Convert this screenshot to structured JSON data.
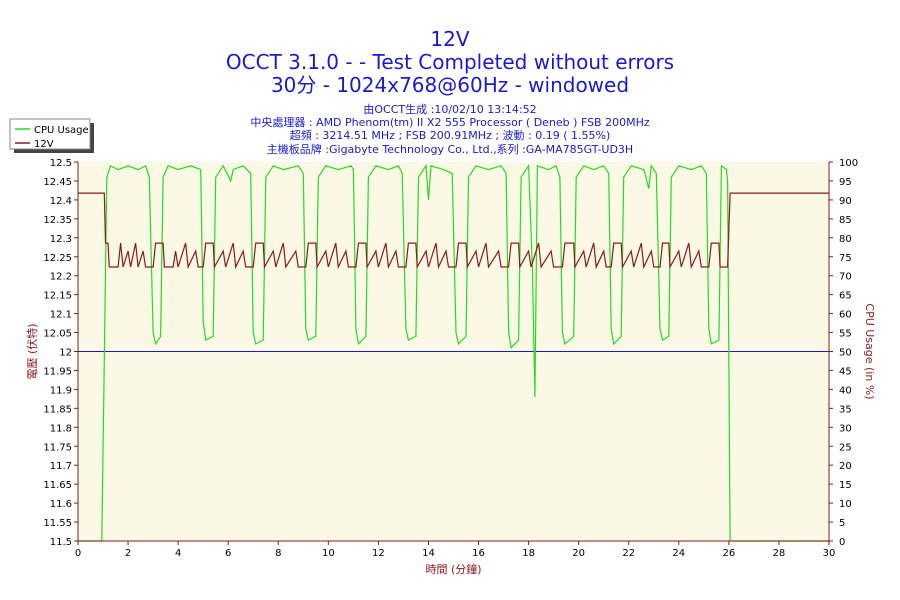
{
  "header": {
    "title": "12V",
    "subtitle": "OCCT 3.1.0 -  - Test Completed without errors",
    "config": "30分 - 1024x768@60Hz - windowed",
    "info_lines": [
      "由OCCT生成 :10/02/10 13:14:52",
      "中央處理器 : AMD Phenom(tm) II X2 555 Processor ( Deneb ) FSB 200MHz",
      "超頻 : 3214.51 MHz ; FSB 200.91MHz ; 波動 : 0.19 ( 1.55%)",
      "主機板品牌 :Gigabyte Technology Co., Ltd.,系列 :GA-MA785GT-UD3H"
    ]
  },
  "colors": {
    "plot_bg": "#fbf8e6",
    "cpu": "#22dd22",
    "voltage": "#8b1a1a",
    "threshold": "#1a1acc",
    "axis_left": "#8b1a1a",
    "axis_right": "#8b1a1a",
    "axis_bottom": "#8b1a1a"
  },
  "chart_data": {
    "type": "line",
    "xlabel": "時間 (分鐘)",
    "ylabel_left": "電壓 (伏特)",
    "ylabel_right": "CPU Usage (in %)",
    "xlim": [
      0,
      30
    ],
    "ylim_left": [
      11.5,
      12.5
    ],
    "ylim_right": [
      0,
      100
    ],
    "x_ticks": [
      0,
      2,
      4,
      6,
      8,
      10,
      12,
      14,
      16,
      18,
      20,
      22,
      24,
      26,
      28,
      30
    ],
    "y_left_ticks": [
      "11.5",
      "11.55",
      "11.6",
      "11.65",
      "11.7",
      "11.75",
      "11.8",
      "11.85",
      "11.9",
      "11.95",
      "12",
      "12.05",
      "12.1",
      "12.15",
      "12.2",
      "12.25",
      "12.3",
      "12.35",
      "12.4",
      "12.45",
      "12.5"
    ],
    "y_right_ticks": [
      0,
      5,
      10,
      15,
      20,
      25,
      30,
      35,
      40,
      45,
      50,
      55,
      60,
      65,
      70,
      75,
      80,
      85,
      90,
      95,
      100
    ],
    "legend_position": "top-left",
    "grid": false,
    "threshold_voltage": 12.0,
    "series": [
      {
        "name": "CPU Usage",
        "axis": "right",
        "points": [
          [
            0,
            0
          ],
          [
            0.95,
            0
          ],
          [
            1.05,
            48
          ],
          [
            1.15,
            96
          ],
          [
            1.3,
            99
          ],
          [
            1.6,
            98
          ],
          [
            2.0,
            99
          ],
          [
            2.4,
            98
          ],
          [
            2.7,
            99
          ],
          [
            2.85,
            96
          ],
          [
            3.0,
            55
          ],
          [
            3.1,
            52
          ],
          [
            3.3,
            54
          ],
          [
            3.4,
            96
          ],
          [
            3.6,
            99
          ],
          [
            4.0,
            98
          ],
          [
            4.5,
            99
          ],
          [
            4.9,
            98
          ],
          [
            5.0,
            58
          ],
          [
            5.1,
            53
          ],
          [
            5.4,
            54
          ],
          [
            5.5,
            96
          ],
          [
            5.8,
            99
          ],
          [
            6.1,
            95
          ],
          [
            6.2,
            98
          ],
          [
            6.6,
            99
          ],
          [
            6.9,
            97
          ],
          [
            7.0,
            55
          ],
          [
            7.1,
            52
          ],
          [
            7.4,
            53
          ],
          [
            7.5,
            96
          ],
          [
            7.8,
            99
          ],
          [
            8.2,
            98
          ],
          [
            8.8,
            99
          ],
          [
            9.0,
            97
          ],
          [
            9.1,
            56
          ],
          [
            9.2,
            53
          ],
          [
            9.5,
            54
          ],
          [
            9.6,
            96
          ],
          [
            9.9,
            99
          ],
          [
            10.4,
            98
          ],
          [
            10.9,
            99
          ],
          [
            11.0,
            98
          ],
          [
            11.1,
            56
          ],
          [
            11.2,
            52
          ],
          [
            11.5,
            54
          ],
          [
            11.6,
            96
          ],
          [
            11.9,
            99
          ],
          [
            12.4,
            98
          ],
          [
            12.8,
            99
          ],
          [
            12.95,
            97
          ],
          [
            13.1,
            56
          ],
          [
            13.2,
            53
          ],
          [
            13.5,
            54
          ],
          [
            13.6,
            96
          ],
          [
            13.9,
            99
          ],
          [
            14.0,
            90
          ],
          [
            14.1,
            99
          ],
          [
            14.6,
            98
          ],
          [
            14.95,
            97
          ],
          [
            15.1,
            55
          ],
          [
            15.2,
            52
          ],
          [
            15.5,
            54
          ],
          [
            15.6,
            96
          ],
          [
            15.9,
            99
          ],
          [
            16.4,
            98
          ],
          [
            16.9,
            99
          ],
          [
            17.1,
            97
          ],
          [
            17.2,
            55
          ],
          [
            17.3,
            51
          ],
          [
            17.6,
            53
          ],
          [
            17.7,
            96
          ],
          [
            18.0,
            99
          ],
          [
            18.15,
            72
          ],
          [
            18.25,
            38
          ],
          [
            18.35,
            99
          ],
          [
            18.8,
            98
          ],
          [
            19.1,
            99
          ],
          [
            19.25,
            96
          ],
          [
            19.35,
            55
          ],
          [
            19.45,
            52
          ],
          [
            19.8,
            54
          ],
          [
            19.9,
            96
          ],
          [
            20.2,
            99
          ],
          [
            20.6,
            98
          ],
          [
            21.0,
            99
          ],
          [
            21.2,
            97
          ],
          [
            21.3,
            56
          ],
          [
            21.4,
            52
          ],
          [
            21.7,
            54
          ],
          [
            21.8,
            96
          ],
          [
            22.1,
            99
          ],
          [
            22.6,
            98
          ],
          [
            22.8,
            93
          ],
          [
            22.9,
            99
          ],
          [
            23.1,
            97
          ],
          [
            23.25,
            56
          ],
          [
            23.35,
            53
          ],
          [
            23.6,
            54
          ],
          [
            23.7,
            96
          ],
          [
            24.0,
            99
          ],
          [
            24.5,
            98
          ],
          [
            24.9,
            99
          ],
          [
            25.1,
            97
          ],
          [
            25.2,
            56
          ],
          [
            25.3,
            52
          ],
          [
            25.6,
            53
          ],
          [
            25.7,
            99
          ],
          [
            25.9,
            98
          ],
          [
            25.95,
            95
          ],
          [
            26.05,
            0
          ],
          [
            30,
            0
          ]
        ]
      },
      {
        "name": "12V",
        "axis": "left",
        "points": [
          [
            0,
            12.418
          ],
          [
            1.05,
            12.418
          ],
          [
            1.1,
            12.286
          ],
          [
            1.2,
            12.286
          ],
          [
            1.25,
            12.223
          ],
          [
            1.6,
            12.223
          ],
          [
            1.7,
            12.286
          ],
          [
            1.8,
            12.223
          ],
          [
            2.0,
            12.265
          ],
          [
            2.1,
            12.223
          ],
          [
            2.3,
            12.286
          ],
          [
            2.4,
            12.223
          ],
          [
            2.6,
            12.265
          ],
          [
            2.7,
            12.223
          ],
          [
            3.0,
            12.223
          ],
          [
            3.1,
            12.286
          ],
          [
            3.4,
            12.286
          ],
          [
            3.45,
            12.223
          ],
          [
            3.8,
            12.223
          ],
          [
            3.9,
            12.265
          ],
          [
            4.0,
            12.223
          ],
          [
            4.3,
            12.286
          ],
          [
            4.4,
            12.223
          ],
          [
            4.7,
            12.265
          ],
          [
            4.8,
            12.223
          ],
          [
            5.0,
            12.223
          ],
          [
            5.1,
            12.286
          ],
          [
            5.4,
            12.286
          ],
          [
            5.45,
            12.223
          ],
          [
            5.8,
            12.265
          ],
          [
            5.9,
            12.223
          ],
          [
            6.2,
            12.286
          ],
          [
            6.3,
            12.223
          ],
          [
            6.6,
            12.265
          ],
          [
            6.7,
            12.223
          ],
          [
            7.0,
            12.223
          ],
          [
            7.1,
            12.286
          ],
          [
            7.4,
            12.286
          ],
          [
            7.45,
            12.223
          ],
          [
            7.8,
            12.265
          ],
          [
            7.9,
            12.223
          ],
          [
            8.2,
            12.286
          ],
          [
            8.3,
            12.223
          ],
          [
            8.7,
            12.265
          ],
          [
            8.8,
            12.223
          ],
          [
            9.1,
            12.223
          ],
          [
            9.2,
            12.286
          ],
          [
            9.5,
            12.286
          ],
          [
            9.55,
            12.223
          ],
          [
            9.9,
            12.265
          ],
          [
            10.0,
            12.223
          ],
          [
            10.3,
            12.286
          ],
          [
            10.4,
            12.223
          ],
          [
            10.7,
            12.265
          ],
          [
            10.8,
            12.223
          ],
          [
            11.1,
            12.223
          ],
          [
            11.2,
            12.286
          ],
          [
            11.5,
            12.286
          ],
          [
            11.55,
            12.223
          ],
          [
            11.9,
            12.265
          ],
          [
            12.0,
            12.223
          ],
          [
            12.3,
            12.286
          ],
          [
            12.4,
            12.223
          ],
          [
            12.7,
            12.265
          ],
          [
            12.8,
            12.223
          ],
          [
            13.1,
            12.223
          ],
          [
            13.2,
            12.286
          ],
          [
            13.5,
            12.286
          ],
          [
            13.55,
            12.223
          ],
          [
            13.9,
            12.265
          ],
          [
            14.0,
            12.223
          ],
          [
            14.3,
            12.286
          ],
          [
            14.4,
            12.223
          ],
          [
            14.7,
            12.265
          ],
          [
            14.8,
            12.223
          ],
          [
            15.1,
            12.223
          ],
          [
            15.2,
            12.286
          ],
          [
            15.5,
            12.286
          ],
          [
            15.55,
            12.223
          ],
          [
            15.9,
            12.265
          ],
          [
            16.0,
            12.223
          ],
          [
            16.3,
            12.286
          ],
          [
            16.4,
            12.223
          ],
          [
            16.8,
            12.265
          ],
          [
            16.9,
            12.223
          ],
          [
            17.2,
            12.223
          ],
          [
            17.3,
            12.286
          ],
          [
            17.6,
            12.286
          ],
          [
            17.65,
            12.223
          ],
          [
            18.0,
            12.265
          ],
          [
            18.1,
            12.223
          ],
          [
            18.4,
            12.286
          ],
          [
            18.5,
            12.223
          ],
          [
            18.9,
            12.265
          ],
          [
            19.0,
            12.223
          ],
          [
            19.35,
            12.223
          ],
          [
            19.45,
            12.286
          ],
          [
            19.8,
            12.286
          ],
          [
            19.85,
            12.223
          ],
          [
            20.2,
            12.265
          ],
          [
            20.3,
            12.223
          ],
          [
            20.6,
            12.286
          ],
          [
            20.7,
            12.223
          ],
          [
            21.0,
            12.265
          ],
          [
            21.1,
            12.223
          ],
          [
            21.3,
            12.223
          ],
          [
            21.4,
            12.286
          ],
          [
            21.7,
            12.286
          ],
          [
            21.75,
            12.223
          ],
          [
            22.1,
            12.265
          ],
          [
            22.2,
            12.223
          ],
          [
            22.5,
            12.286
          ],
          [
            22.6,
            12.223
          ],
          [
            22.9,
            12.265
          ],
          [
            23.0,
            12.223
          ],
          [
            23.25,
            12.223
          ],
          [
            23.35,
            12.286
          ],
          [
            23.6,
            12.286
          ],
          [
            23.65,
            12.223
          ],
          [
            24.0,
            12.265
          ],
          [
            24.1,
            12.223
          ],
          [
            24.4,
            12.286
          ],
          [
            24.5,
            12.223
          ],
          [
            24.8,
            12.265
          ],
          [
            24.9,
            12.223
          ],
          [
            25.2,
            12.223
          ],
          [
            25.3,
            12.286
          ],
          [
            25.6,
            12.286
          ],
          [
            25.65,
            12.223
          ],
          [
            25.95,
            12.223
          ],
          [
            26.05,
            12.418
          ],
          [
            30,
            12.418
          ]
        ]
      }
    ]
  }
}
